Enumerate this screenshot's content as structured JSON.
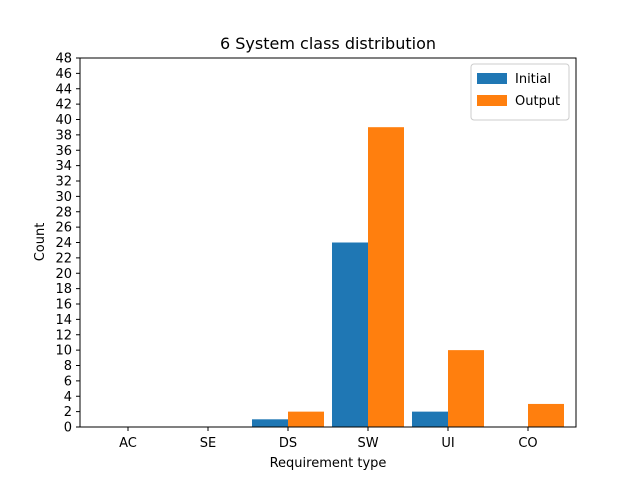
{
  "chart_data": {
    "type": "bar",
    "title": "6 System class distribution",
    "xlabel": "Requirement type",
    "ylabel": "Count",
    "categories": [
      "AC",
      "SE",
      "DS",
      "SW",
      "UI",
      "CO"
    ],
    "series": [
      {
        "name": "Initial",
        "values": [
          0,
          0,
          1,
          24,
          2,
          0
        ],
        "color": "#1f77b4"
      },
      {
        "name": "Output",
        "values": [
          0,
          0,
          2,
          39,
          10,
          3
        ],
        "color": "#ff7f0e"
      }
    ],
    "ylim": [
      0,
      48
    ],
    "yticks": [
      0,
      2,
      4,
      6,
      8,
      10,
      12,
      14,
      16,
      18,
      20,
      22,
      24,
      26,
      28,
      30,
      32,
      34,
      36,
      38,
      40,
      42,
      44,
      46,
      48
    ],
    "legend_position": "top-right",
    "grid": false
  }
}
